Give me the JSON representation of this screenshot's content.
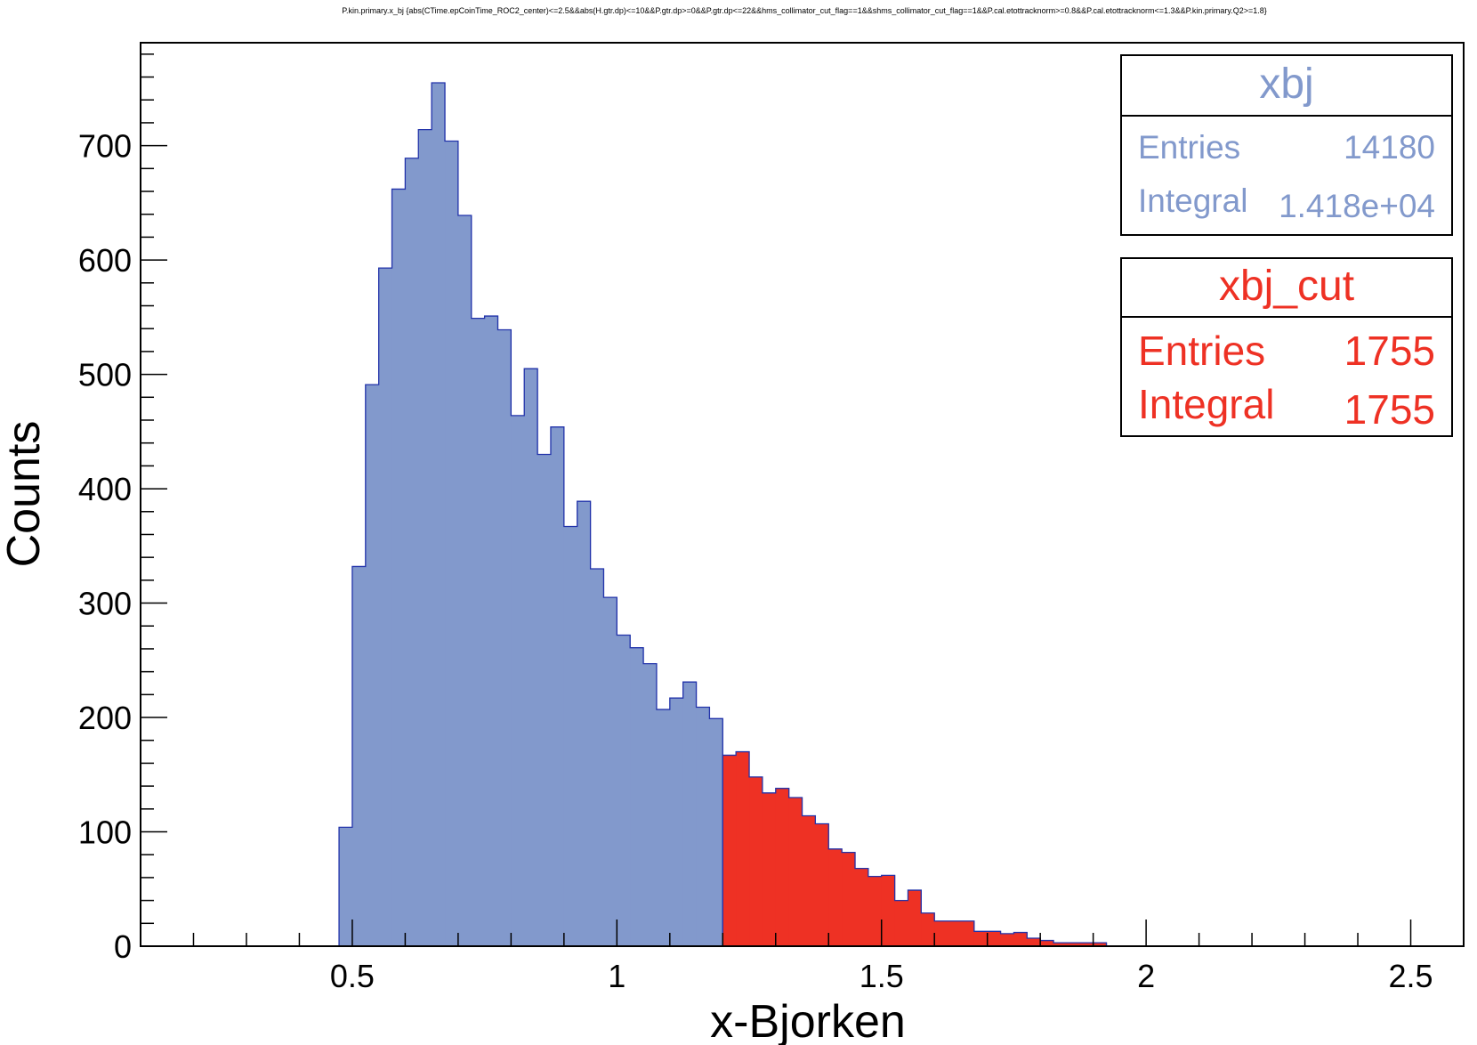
{
  "chart_data": {
    "type": "bar",
    "title": "P.kin.primary.x_bj {abs(CTime.epCoinTime_ROC2_center)<=2.5&&abs(H.gtr.dp)<=10&&P.gtr.dp>=0&&P.gtr.dp<=22&&hms_collimator_cut_flag==1&&shms_collimator_cut_flag==1&&P.cal.etottracknorm>=0.8&&P.cal.etottracknorm<=1.3&&P.kin.primary.Q2>=1.8}",
    "xlabel": "x-Bjorken",
    "ylabel": "Counts",
    "xlim": [
      0.1,
      2.6
    ],
    "ylim": [
      0,
      790
    ],
    "bin_width": 0.025,
    "grid": false,
    "x_ticks": [
      0.5,
      1,
      1.5,
      2,
      2.5
    ],
    "x_tick_labels": [
      "0.5",
      "1",
      "1.5",
      "2",
      "2.5"
    ],
    "y_ticks": [
      0,
      100,
      200,
      300,
      400,
      500,
      600,
      700
    ],
    "y_tick_labels": [
      "0",
      "100",
      "200",
      "300",
      "400",
      "500",
      "600",
      "700"
    ],
    "series": [
      {
        "name": "xbj",
        "color": "#8299cc",
        "line_color": "#2233aa",
        "x_start": 0.475,
        "values": [
          104,
          332,
          491,
          593,
          662,
          689,
          714,
          755,
          704,
          639,
          549,
          551,
          539,
          464,
          505,
          430,
          454,
          367,
          389,
          330,
          305,
          272,
          261,
          247,
          207,
          217,
          231,
          209,
          199
        ]
      },
      {
        "name": "xbj_cut",
        "color": "#ee3124",
        "line_color": "#2233aa",
        "x_start": 1.2,
        "values": [
          167,
          170,
          148,
          134,
          138,
          130,
          114,
          107,
          85,
          82,
          68,
          61,
          62,
          40,
          49,
          29,
          22,
          22,
          22,
          13,
          13,
          11,
          12,
          7,
          5,
          3,
          3,
          3,
          3
        ]
      }
    ],
    "legend": [
      {
        "name": "xbj",
        "color": "#8299cc",
        "rows": [
          {
            "label": "Entries",
            "value": "14180"
          },
          {
            "label": "Integral",
            "value": "1.418e+04"
          }
        ]
      },
      {
        "name": "xbj_cut",
        "color": "#ee3124",
        "rows": [
          {
            "label": "Entries",
            "value": "1755"
          },
          {
            "label": "Integral",
            "value": "1755"
          }
        ]
      }
    ],
    "legend_placement": "top-right"
  }
}
